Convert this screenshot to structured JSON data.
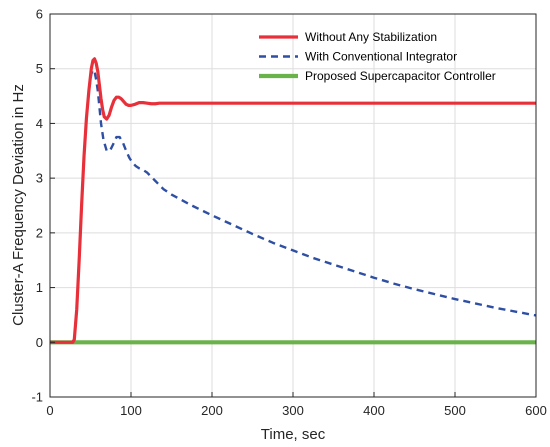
{
  "chart_data": {
    "type": "line",
    "title": "",
    "xlabel": "Time, sec",
    "ylabel": "Cluster-A Frequency Deviation in Hz",
    "xlim": [
      0,
      600
    ],
    "ylim": [
      -1,
      6
    ],
    "xticks": [
      0,
      100,
      200,
      300,
      400,
      500,
      600
    ],
    "yticks": [
      -1,
      0,
      1,
      2,
      3,
      4,
      5,
      6
    ],
    "grid": true,
    "legend_position": "top-right",
    "series": [
      {
        "name": "Without Any Stabilization",
        "color": "#e8303a",
        "style": "solid",
        "x": [
          0,
          28,
          30,
          33,
          36,
          39,
          42,
          45,
          48,
          51,
          53,
          55,
          57,
          59,
          61,
          63,
          65,
          67,
          70,
          73,
          76,
          79,
          82,
          85,
          88,
          91,
          94,
          97,
          100,
          105,
          110,
          115,
          120,
          125,
          130,
          135,
          140,
          150,
          160,
          180,
          200,
          300,
          400,
          500,
          600
        ],
        "y": [
          0,
          0,
          0.05,
          0.6,
          1.5,
          2.5,
          3.4,
          4.1,
          4.6,
          5.0,
          5.15,
          5.18,
          5.1,
          4.95,
          4.7,
          4.45,
          4.25,
          4.12,
          4.08,
          4.15,
          4.3,
          4.42,
          4.48,
          4.48,
          4.45,
          4.4,
          4.35,
          4.33,
          4.33,
          4.35,
          4.38,
          4.38,
          4.37,
          4.36,
          4.36,
          4.37,
          4.37,
          4.37,
          4.37,
          4.37,
          4.37,
          4.37,
          4.37,
          4.37,
          4.37
        ]
      },
      {
        "name": "With Conventional Integrator",
        "color": "#2e4fa3",
        "style": "dashed",
        "x": [
          0,
          28,
          30,
          33,
          36,
          39,
          42,
          45,
          48,
          51,
          53,
          55,
          57,
          59,
          61,
          63,
          66,
          70,
          74,
          78,
          82,
          86,
          90,
          94,
          98,
          102,
          106,
          110,
          115,
          120,
          130,
          140,
          150,
          175,
          200,
          225,
          250,
          275,
          300,
          325,
          350,
          375,
          400,
          425,
          450,
          475,
          500,
          525,
          550,
          575,
          600
        ],
        "y": [
          0,
          0,
          0.05,
          0.6,
          1.5,
          2.5,
          3.4,
          4.1,
          4.6,
          4.9,
          4.98,
          4.95,
          4.8,
          4.6,
          4.3,
          4.0,
          3.7,
          3.5,
          3.5,
          3.62,
          3.75,
          3.75,
          3.65,
          3.5,
          3.37,
          3.28,
          3.22,
          3.18,
          3.15,
          3.1,
          2.95,
          2.8,
          2.7,
          2.5,
          2.32,
          2.15,
          1.98,
          1.82,
          1.68,
          1.54,
          1.42,
          1.3,
          1.18,
          1.07,
          0.97,
          0.88,
          0.79,
          0.71,
          0.63,
          0.56,
          0.49
        ]
      },
      {
        "name": "Proposed Supercapacitor Controller",
        "color": "#6ab34a",
        "style": "solid",
        "x": [
          0,
          600
        ],
        "y": [
          0,
          0
        ]
      }
    ]
  }
}
